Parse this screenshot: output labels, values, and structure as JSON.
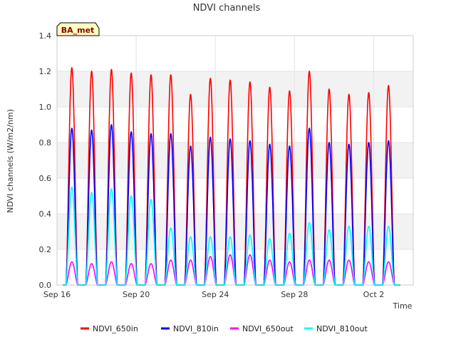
{
  "chart_data": {
    "type": "line",
    "title": "NDVI channels",
    "xlabel": "Time",
    "ylabel": "NDVI channels (W/m2/nm)",
    "ylim": [
      0,
      1.4
    ],
    "yticks": [
      0.0,
      0.2,
      0.4,
      0.6,
      0.8,
      1.0,
      1.2,
      1.4
    ],
    "ytick_labels": [
      "0.0",
      "0.2",
      "0.4",
      "0.6",
      "0.8",
      "1.0",
      "1.2",
      "1.4"
    ],
    "xlim_days": [
      0,
      18
    ],
    "xticks": [
      {
        "day": 0,
        "label": "Sep 16"
      },
      {
        "day": 4,
        "label": "Sep 20"
      },
      {
        "day": 8,
        "label": "Sep 24"
      },
      {
        "day": 12,
        "label": "Sep 28"
      },
      {
        "day": 16,
        "label": "Oct 2"
      }
    ],
    "site_badge": "BA_met",
    "legend_position": "bottom-center",
    "series": [
      {
        "name": "NDVI_650in",
        "color": "#ff0000",
        "daily_peaks": [
          1.22,
          1.2,
          1.21,
          1.19,
          1.18,
          1.18,
          1.07,
          1.16,
          1.15,
          1.14,
          1.11,
          1.09,
          1.2,
          1.1,
          1.07,
          1.08,
          1.12
        ]
      },
      {
        "name": "NDVI_810in",
        "color": "#0000ff",
        "daily_peaks": [
          0.88,
          0.87,
          0.9,
          0.86,
          0.85,
          0.85,
          0.78,
          0.83,
          0.82,
          0.81,
          0.79,
          0.78,
          0.88,
          0.8,
          0.79,
          0.8,
          0.81
        ]
      },
      {
        "name": "NDVI_650out",
        "color": "#ff00ff",
        "daily_peaks": [
          0.13,
          0.12,
          0.13,
          0.12,
          0.12,
          0.14,
          0.14,
          0.16,
          0.17,
          0.17,
          0.14,
          0.13,
          0.14,
          0.14,
          0.14,
          0.13,
          0.13
        ]
      },
      {
        "name": "NDVI_810out",
        "color": "#00ffff",
        "daily_peaks": [
          0.55,
          0.52,
          0.54,
          0.5,
          0.48,
          0.32,
          0.27,
          0.27,
          0.27,
          0.28,
          0.26,
          0.29,
          0.35,
          0.31,
          0.33,
          0.33,
          0.33
        ]
      }
    ],
    "peak_day_offsets": [
      0.75,
      1.75,
      2.75,
      3.75,
      4.75,
      5.75,
      6.75,
      7.75,
      8.75,
      9.75,
      10.75,
      11.75,
      12.75,
      13.75,
      14.75,
      15.75,
      16.75
    ],
    "day_half_width": 0.3
  }
}
